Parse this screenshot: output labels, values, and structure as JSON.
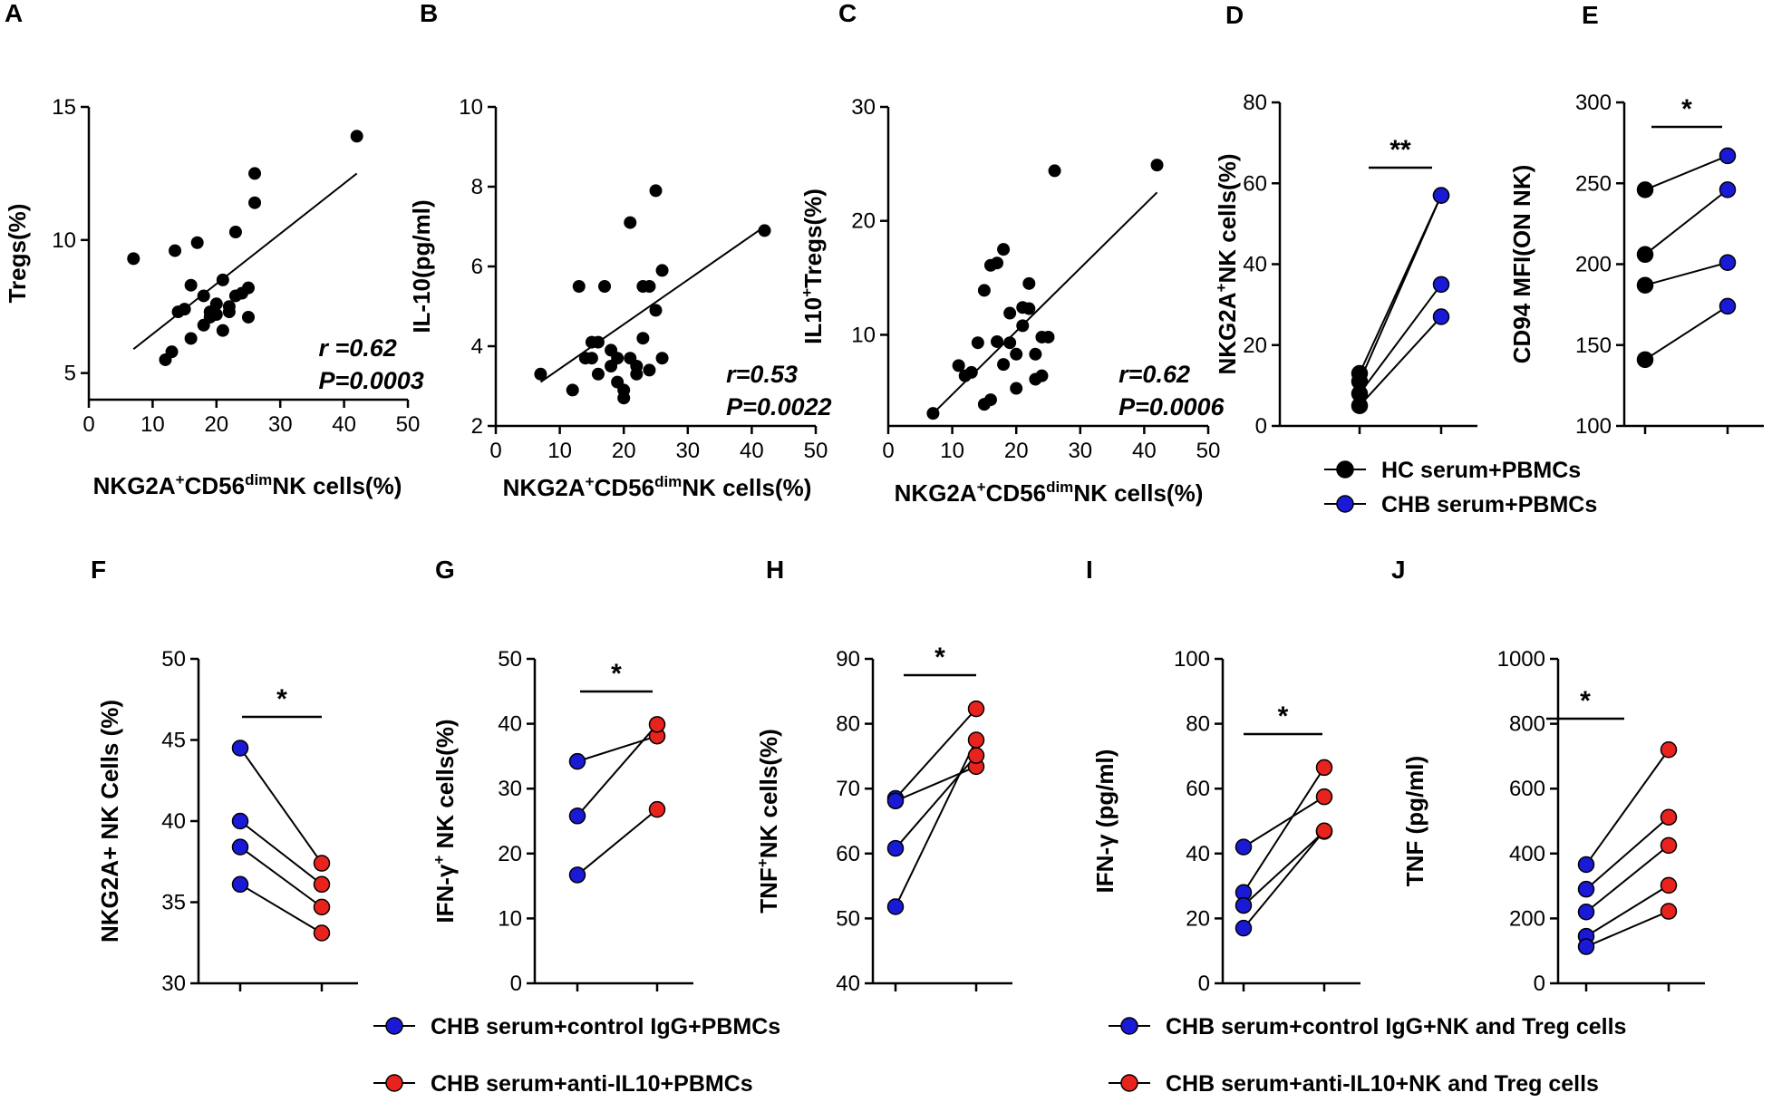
{
  "chart_data": [
    {
      "panel": "A",
      "type": "scatter",
      "xlabel": "NKG2A⁺CD56ᵈⁱᵐNK cells(%)",
      "ylabel": "Tregs(%)",
      "xlim": [
        0,
        50
      ],
      "ylim": [
        4,
        15
      ],
      "xticks": [
        0,
        10,
        20,
        30,
        40,
        50
      ],
      "yticks": [
        5,
        10,
        15
      ],
      "x": [
        7,
        12,
        13,
        13.5,
        14,
        15,
        16,
        16,
        17,
        18,
        18,
        19,
        19,
        20,
        20,
        21,
        21,
        22,
        22,
        23,
        23,
        24,
        25,
        25,
        26,
        26,
        42
      ],
      "y": [
        9.3,
        5.5,
        5.8,
        9.6,
        7.3,
        7.4,
        6.3,
        8.3,
        9.9,
        6.8,
        7.9,
        7.1,
        7.3,
        7.6,
        7.2,
        8.5,
        6.6,
        7.5,
        7.3,
        10.3,
        7.9,
        8.0,
        8.2,
        7.1,
        11.4,
        12.5,
        13.9
      ],
      "fit": [
        [
          7,
          5.9
        ],
        [
          42,
          12.5
        ]
      ],
      "r_label": "r =0.62",
      "p_label": "P=0.0003"
    },
    {
      "panel": "B",
      "type": "scatter",
      "xlabel": "NKG2A⁺CD56ᵈⁱᵐNK cells(%)",
      "ylabel": "IL-10(pg/ml)",
      "xlim": [
        0,
        50
      ],
      "ylim": [
        2,
        10
      ],
      "xticks": [
        0,
        10,
        20,
        30,
        40,
        50
      ],
      "yticks": [
        2,
        4,
        6,
        8,
        10
      ],
      "x": [
        7,
        12,
        13,
        14,
        15,
        15,
        16,
        16,
        17,
        18,
        18,
        19,
        19,
        20,
        20,
        21,
        21,
        22,
        22,
        23,
        23,
        24,
        24,
        25,
        25,
        26,
        26,
        42
      ],
      "y": [
        3.3,
        2.9,
        5.5,
        3.7,
        4.1,
        3.7,
        4.1,
        3.3,
        5.5,
        3.9,
        3.5,
        3.7,
        3.1,
        2.9,
        2.7,
        3.7,
        7.1,
        3.5,
        3.3,
        5.5,
        4.2,
        3.4,
        5.5,
        4.9,
        7.9,
        3.7,
        5.9,
        6.9
      ],
      "fit": [
        [
          7,
          3.1
        ],
        [
          42,
          7.0
        ]
      ],
      "r_label": "r=0.53",
      "p_label": "P=0.0022"
    },
    {
      "panel": "C",
      "type": "scatter",
      "xlabel": "NKG2A⁺CD56ᵈⁱᵐNK cells(%)",
      "ylabel": "IL10⁺Tregs(%)",
      "xlim": [
        0,
        50
      ],
      "ylim": [
        2,
        30
      ],
      "xticks": [
        0,
        10,
        20,
        30,
        40,
        50
      ],
      "yticks": [
        10,
        20,
        30
      ],
      "x": [
        7,
        11,
        12,
        13,
        14,
        15,
        15,
        16,
        16,
        17,
        17,
        18,
        18,
        19,
        19,
        20,
        20,
        21,
        21,
        22,
        22,
        23,
        23,
        24,
        24,
        25,
        26,
        42
      ],
      "y": [
        3.1,
        7.3,
        6.4,
        6.7,
        9.3,
        3.9,
        13.9,
        16.1,
        4.3,
        9.4,
        16.3,
        17.5,
        7.4,
        11.9,
        9.3,
        5.3,
        8.3,
        12.4,
        10.8,
        14.5,
        12.3,
        6.1,
        8.3,
        6.4,
        9.8,
        9.8,
        24.4,
        24.9
      ],
      "fit": [
        [
          7,
          3.1
        ],
        [
          42,
          22.5
        ]
      ],
      "r_label": "r=0.62",
      "p_label": "P=0.0006"
    },
    {
      "panel": "D",
      "type": "paired",
      "ylabel": "NKG2A⁺NK cells(%)",
      "ylim": [
        0,
        80
      ],
      "yticks": [
        0,
        20,
        40,
        60,
        80
      ],
      "series": [
        {
          "name": "HC serum+PBMCs",
          "color": "#000000",
          "values": [
            13,
            11,
            8,
            5
          ]
        },
        {
          "name": "CHB serum+PBMCs",
          "color": "#1a1ad6",
          "values": [
            57,
            57,
            35,
            27
          ]
        }
      ],
      "significance": "**"
    },
    {
      "panel": "E",
      "type": "paired",
      "ylabel": "CD94 MFI(ON NK)",
      "ylim": [
        100,
        300
      ],
      "yticks": [
        100,
        150,
        200,
        250,
        300
      ],
      "series": [
        {
          "name": "HC serum+PBMCs",
          "color": "#000000",
          "values": [
            246,
            206,
            187,
            141
          ]
        },
        {
          "name": "CHB serum+PBMCs",
          "color": "#1a1ad6",
          "values": [
            267,
            246,
            201,
            174
          ]
        }
      ],
      "significance": "*"
    },
    {
      "panel": "F",
      "type": "paired",
      "ylabel": "NKG2A+ NK Cells (%)",
      "ylim": [
        30,
        50
      ],
      "yticks": [
        30,
        35,
        40,
        45,
        50
      ],
      "series": [
        {
          "name": "CHB serum+control IgG+PBMCs",
          "color": "#1a1ad6",
          "values": [
            44.5,
            40.0,
            38.4,
            36.1
          ]
        },
        {
          "name": "CHB serum+anti-IL10+PBMCs",
          "color": "#e8231e",
          "values": [
            37.4,
            36.1,
            34.7,
            33.1
          ]
        }
      ],
      "significance": "*"
    },
    {
      "panel": "G",
      "type": "paired",
      "ylabel": "IFN-γ⁺ NK cells(%)",
      "ylim": [
        0,
        50
      ],
      "yticks": [
        0,
        10,
        20,
        30,
        40,
        50
      ],
      "series": [
        {
          "name": "CHB serum+control IgG+PBMCs",
          "color": "#1a1ad6",
          "values": [
            34.2,
            25.8,
            16.7
          ]
        },
        {
          "name": "CHB serum+anti-IL10+PBMCs",
          "color": "#e8231e",
          "values": [
            38.1,
            39.9,
            26.8
          ]
        }
      ],
      "significance": "*"
    },
    {
      "panel": "H",
      "type": "paired",
      "ylabel": "TNF⁺NK cells(%)",
      "ylim": [
        40,
        90
      ],
      "yticks": [
        40,
        50,
        60,
        70,
        80,
        90
      ],
      "series": [
        {
          "name": "CHB serum+control IgG+PBMCs",
          "color": "#1a1ad6",
          "values": [
            68.5,
            68.1,
            60.8,
            51.8
          ]
        },
        {
          "name": "CHB serum+anti-IL10+PBMCs",
          "color": "#e8231e",
          "values": [
            82.3,
            73.4,
            75.1,
            77.5
          ]
        }
      ],
      "significance": "*"
    },
    {
      "panel": "I",
      "type": "paired",
      "ylabel": "IFN-γ (pg/ml)",
      "ylim": [
        0,
        100
      ],
      "yticks": [
        0,
        20,
        40,
        60,
        80,
        100
      ],
      "series": [
        {
          "name": "CHB serum+control IgG+NK and Treg cells",
          "color": "#1a1ad6",
          "values": [
            42,
            28,
            24,
            17
          ]
        },
        {
          "name": "CHB serum+anti-IL10+NK and Treg cells",
          "color": "#e8231e",
          "values": [
            57.5,
            66.5,
            46.8,
            47
          ]
        }
      ],
      "significance": "*"
    },
    {
      "panel": "J",
      "type": "paired",
      "ylabel": "TNF (pg/ml)",
      "ylim": [
        0,
        1000
      ],
      "yticks": [
        0,
        200,
        400,
        600,
        800,
        1000
      ],
      "series": [
        {
          "name": "CHB serum+control IgG+NK and Treg cells",
          "color": "#1a1ad6",
          "values": [
            366,
            290,
            220,
            145,
            113
          ]
        },
        {
          "name": "CHB serum+anti-IL10+NK and Treg cells",
          "color": "#e8231e",
          "values": [
            720,
            512,
            425,
            302,
            222
          ]
        }
      ],
      "significance": "*"
    }
  ],
  "legends": {
    "de": [
      "HC serum+PBMCs",
      "CHB serum+PBMCs"
    ],
    "fh": [
      "CHB serum+control IgG+PBMCs",
      "CHB serum+anti-IL10+PBMCs"
    ],
    "ij": [
      "CHB serum+control IgG+NK and Treg cells",
      "CHB serum+anti-IL10+NK and Treg cells"
    ]
  },
  "colors": {
    "black": "#000000",
    "blue": "#1a1ad6",
    "red": "#e8231e"
  }
}
